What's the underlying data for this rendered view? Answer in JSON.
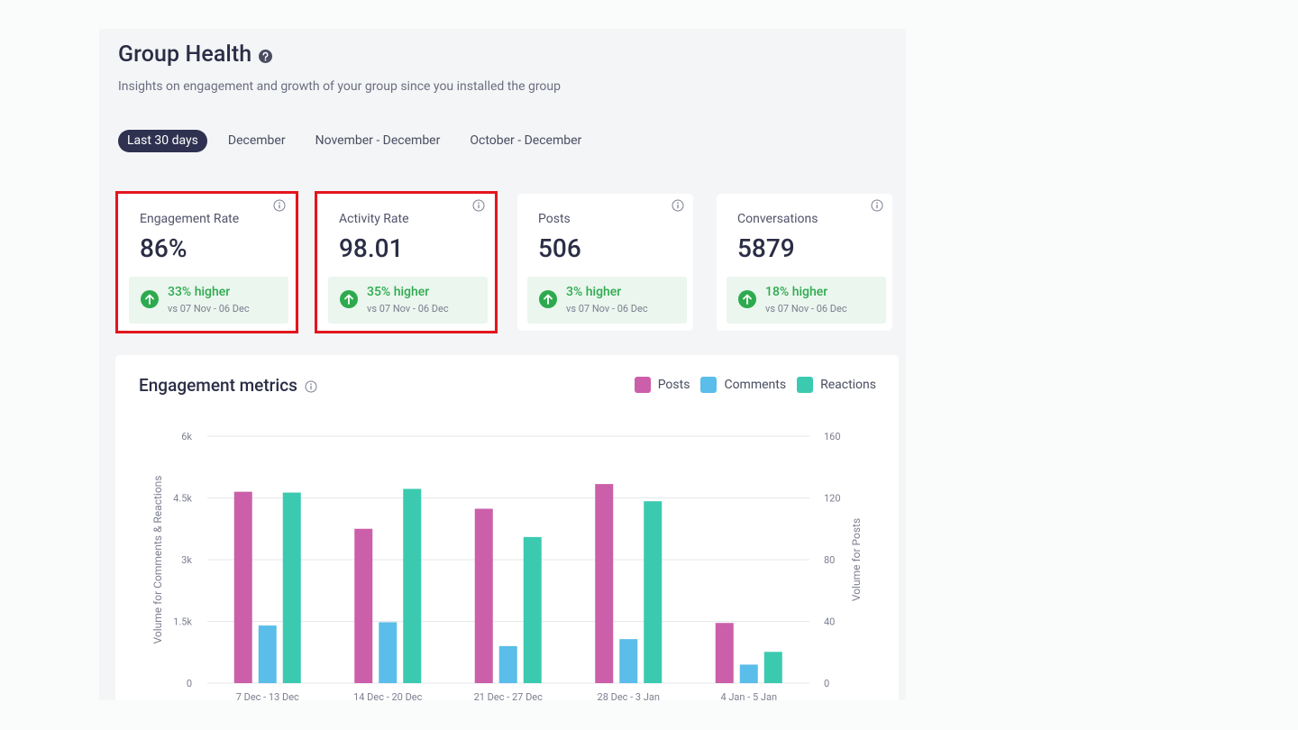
{
  "header": {
    "title": "Group Health",
    "subtitle": "Insights on engagement and growth of your group since you installed the group"
  },
  "tabs": [
    {
      "label": "Last 30 days",
      "active": true
    },
    {
      "label": "December",
      "active": false
    },
    {
      "label": "November - December",
      "active": false
    },
    {
      "label": "October - December",
      "active": false
    }
  ],
  "cards": [
    {
      "label": "Engagement Rate",
      "value": "86%",
      "delta": "33% higher",
      "compare": "vs 07 Nov - 06 Dec",
      "highlighted": true
    },
    {
      "label": "Activity Rate",
      "value": "98.01",
      "delta": "35% higher",
      "compare": "vs 07 Nov - 06 Dec",
      "highlighted": true
    },
    {
      "label": "Posts",
      "value": "506",
      "delta": "3% higher",
      "compare": "vs 07 Nov - 06 Dec",
      "highlighted": false
    },
    {
      "label": "Conversations",
      "value": "5879",
      "delta": "18% higher",
      "compare": "vs 07 Nov - 06 Dec",
      "highlighted": false
    }
  ],
  "colors": {
    "posts": "#cc5fa9",
    "comments": "#5bbde9",
    "reactions": "#3bcab0",
    "highlight": "#e3161d",
    "positive": "#2eaa4e",
    "active_tab": "#2e3150"
  },
  "chart_data": {
    "type": "bar",
    "title": "Engagement metrics",
    "categories": [
      "7 Dec - 13 Dec",
      "14 Dec - 20 Dec",
      "21 Dec - 27 Dec",
      "28 Dec - 3 Jan",
      "4 Jan - 5 Jan"
    ],
    "series": [
      {
        "name": "Posts",
        "axis": "right",
        "values": [
          124,
          100,
          113,
          129,
          39
        ]
      },
      {
        "name": "Comments",
        "axis": "left",
        "values": [
          1400,
          1480,
          900,
          1070,
          450
        ]
      },
      {
        "name": "Reactions",
        "axis": "left",
        "values": [
          4630,
          4720,
          3550,
          4420,
          760
        ]
      }
    ],
    "y_left": {
      "label": "Volume for Comments & Reactions",
      "ticks": [
        "0",
        "1.5k",
        "3k",
        "4.5k",
        "6k"
      ],
      "tick_values": [
        0,
        1500,
        3000,
        4500,
        6000
      ],
      "range": [
        0,
        6000
      ]
    },
    "y_right": {
      "label": "Volume for Posts",
      "ticks": [
        "0",
        "40",
        "80",
        "120",
        "160"
      ],
      "tick_values": [
        0,
        40,
        80,
        120,
        160
      ],
      "range": [
        0,
        160
      ]
    },
    "legend": [
      "Posts",
      "Comments",
      "Reactions"
    ],
    "legend_position": "top-right",
    "grid": true
  }
}
